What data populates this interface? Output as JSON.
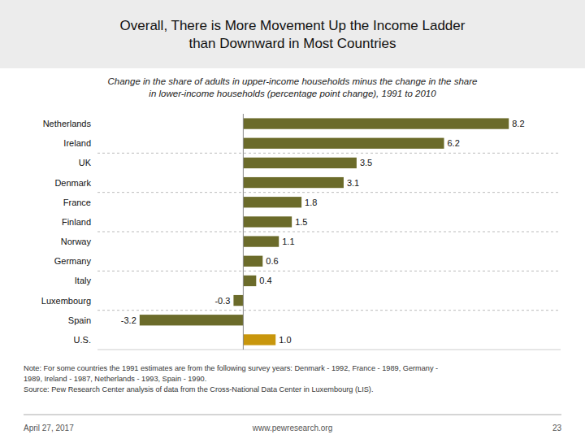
{
  "chart_data": {
    "type": "bar",
    "orientation": "horizontal",
    "title": "Overall, There is More Movement Up the Income Ladder\nthan Downward in Most Countries",
    "subtitle": "Change in the share of adults in upper-income households minus the change in the share\nin lower-income households (percentage point change), 1991 to 2010",
    "categories": [
      "Netherlands",
      "Ireland",
      "UK",
      "Denmark",
      "France",
      "Finland",
      "Norway",
      "Germany",
      "Italy",
      "Luxembourg",
      "Spain",
      "U.S."
    ],
    "values": [
      8.2,
      6.2,
      3.5,
      3.1,
      1.8,
      1.5,
      1.1,
      0.6,
      0.4,
      -0.3,
      -3.2,
      1.0
    ],
    "value_labels": [
      "8.2",
      "6.2",
      "3.5",
      "3.1",
      "1.8",
      "1.5",
      "1.1",
      "0.6",
      "0.4",
      "-0.3",
      "-3.2",
      "1.0"
    ],
    "colors": [
      "#6b6b2a",
      "#6b6b2a",
      "#6b6b2a",
      "#6b6b2a",
      "#6b6b2a",
      "#6b6b2a",
      "#6b6b2a",
      "#6b6b2a",
      "#6b6b2a",
      "#6b6b2a",
      "#6b6b2a",
      "#c8960c"
    ],
    "xlim": [
      -4.5,
      9.8
    ],
    "tick_labels": false,
    "data_labels": true,
    "note": "Note: For some countries the 1991 estimates are from the following survey years: Denmark - 1992, France - 1989, Germany -\n1989, Ireland - 1987, Netherlands - 1993, Spain - 1990.\nSource: Pew Research Center analysis of data from the Cross-National Data Center in Luxembourg (LIS).",
    "footer": [
      "April 27, 2017",
      "www.pewresearch.org",
      "23"
    ]
  }
}
